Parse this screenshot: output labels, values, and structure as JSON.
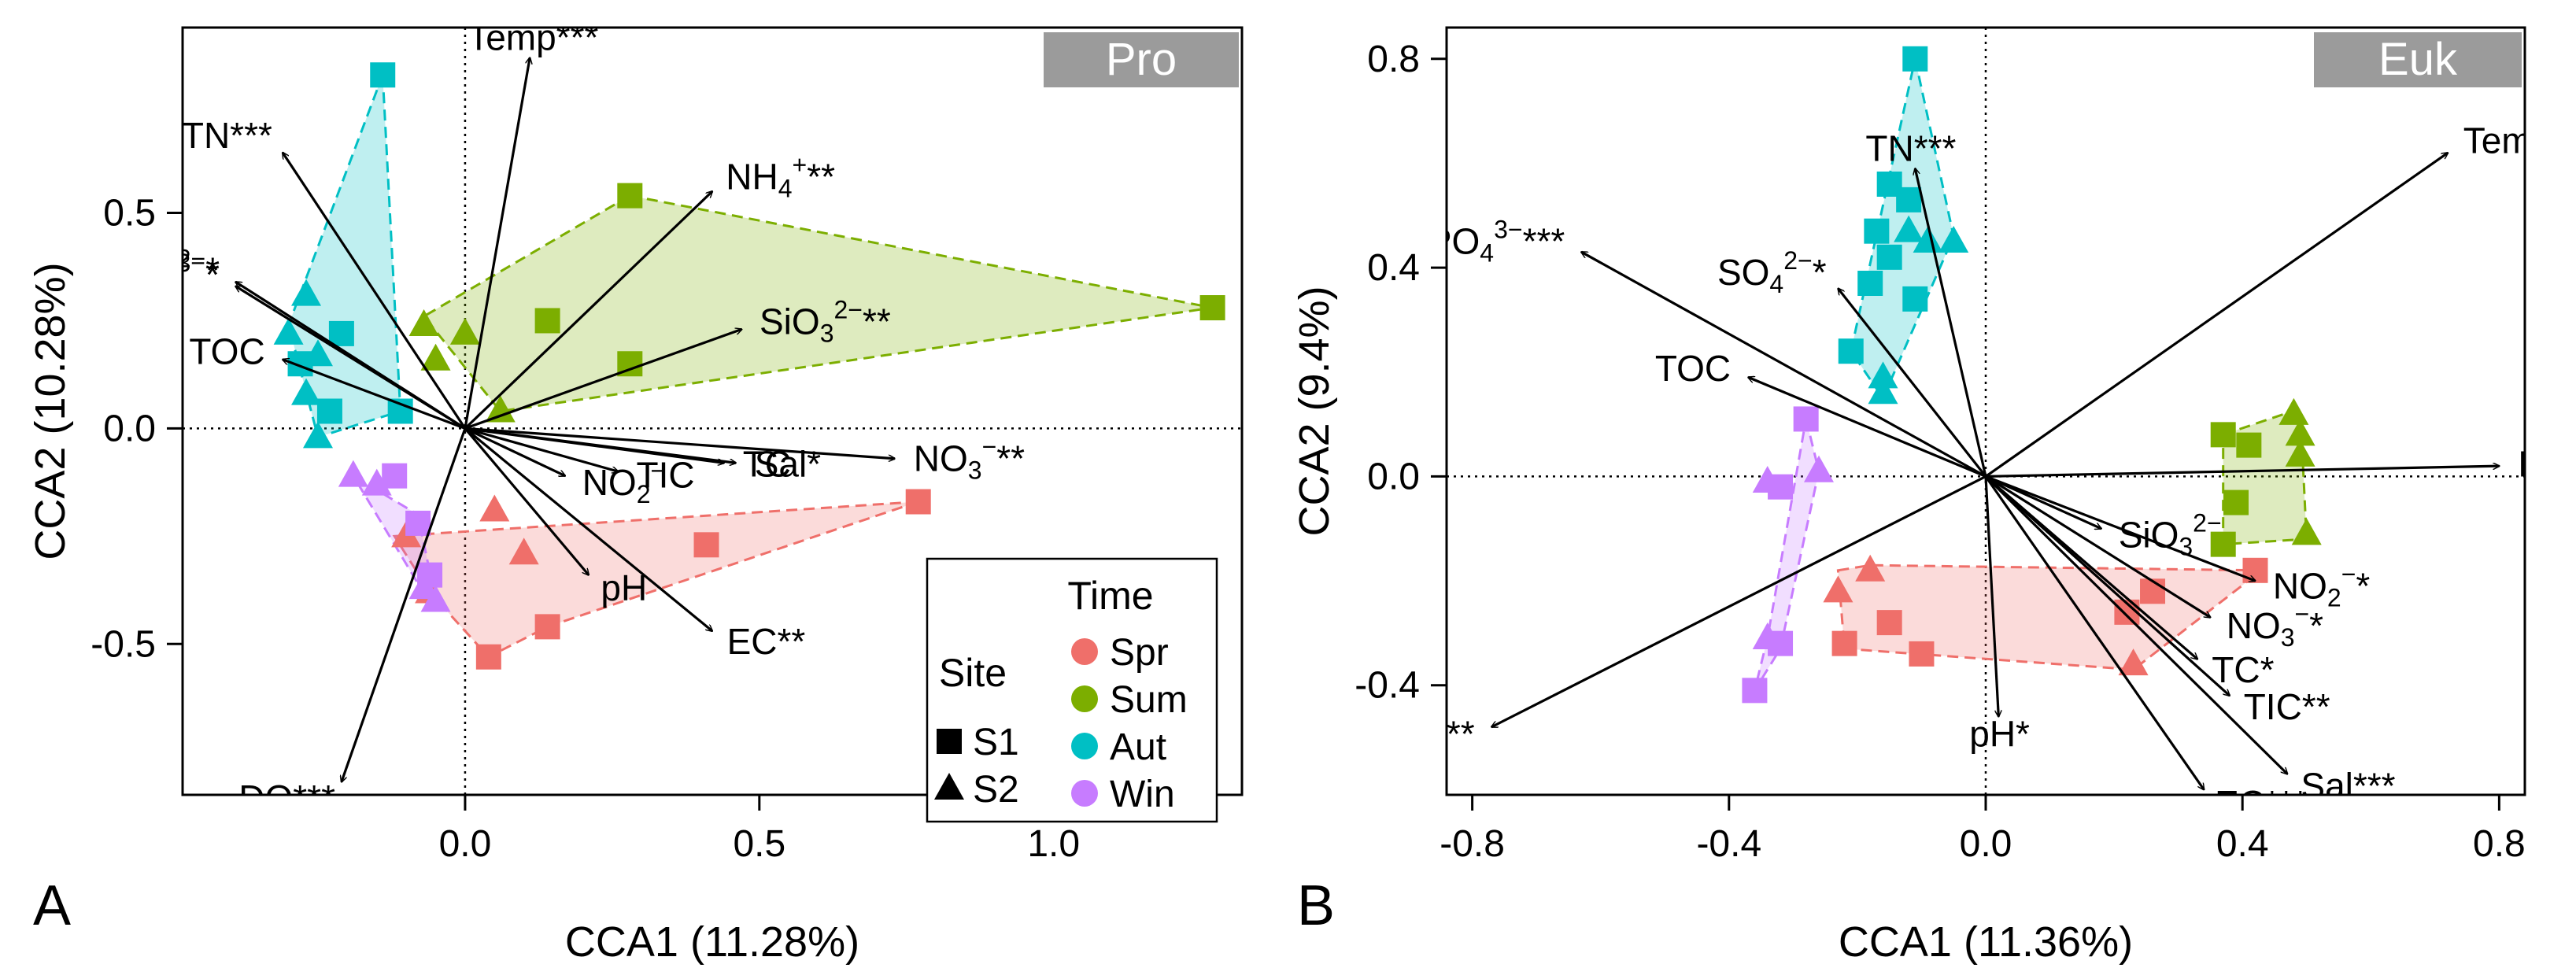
{
  "figure": {
    "legend": {
      "time_title": "Time",
      "site_title": "Site",
      "time_entries": [
        {
          "label": "Spr",
          "color": "#EF6F6A"
        },
        {
          "label": "Sum",
          "color": "#7CAE00"
        },
        {
          "label": "Aut",
          "color": "#00BFC4"
        },
        {
          "label": "Win",
          "color": "#C77CFF"
        }
      ],
      "site_entries": [
        {
          "label": "S1",
          "shape": "square"
        },
        {
          "label": "S2",
          "shape": "triangle"
        }
      ]
    }
  },
  "chart_data": [
    {
      "type": "scatter",
      "panel_label": "A",
      "title": "Pro",
      "xlabel": "CCA1 (11.28%)",
      "ylabel": "CCA2 (10.28%)",
      "xlim": [
        -0.48,
        1.32
      ],
      "ylim": [
        -0.85,
        0.93
      ],
      "xticks": [
        0.0,
        0.5,
        1.0
      ],
      "xtick_labels": [
        "0.0",
        "0.5",
        "1.0"
      ],
      "yticks": [
        -0.5,
        0.0,
        0.5
      ],
      "ytick_labels": [
        "-0.5",
        "0.0",
        "0.5"
      ],
      "groups": {
        "Spr": {
          "hull": [
            [
              0.77,
              -0.17
            ],
            [
              -0.12,
              -0.25
            ],
            [
              -0.06,
              -0.38
            ],
            [
              0.04,
              -0.53
            ],
            [
              0.14,
              -0.46
            ]
          ],
          "points": [
            [
              0.77,
              -0.17,
              "S1"
            ],
            [
              0.41,
              -0.27,
              "S1"
            ],
            [
              0.14,
              -0.46,
              "S1"
            ],
            [
              0.04,
              -0.53,
              "S1"
            ],
            [
              0.05,
              -0.19,
              "S2"
            ],
            [
              0.1,
              -0.29,
              "S2"
            ],
            [
              -0.1,
              -0.25,
              "S2"
            ],
            [
              -0.06,
              -0.38,
              "S2"
            ]
          ]
        },
        "Sum": {
          "hull": [
            [
              0.28,
              0.54
            ],
            [
              1.27,
              0.28
            ],
            [
              0.06,
              0.04
            ],
            [
              -0.07,
              0.26
            ]
          ],
          "points": [
            [
              1.27,
              0.28,
              "S1"
            ],
            [
              0.28,
              0.54,
              "S1"
            ],
            [
              0.14,
              0.25,
              "S1"
            ],
            [
              0.28,
              0.15,
              "S1"
            ],
            [
              -0.07,
              0.24,
              "S2"
            ],
            [
              0.0,
              0.22,
              "S2"
            ],
            [
              -0.05,
              0.16,
              "S2"
            ],
            [
              0.06,
              0.04,
              "S2"
            ]
          ]
        },
        "Aut": {
          "hull": [
            [
              -0.14,
              0.82
            ],
            [
              -0.11,
              0.04
            ],
            [
              -0.25,
              -0.02
            ],
            [
              -0.3,
              0.24
            ]
          ],
          "points": [
            [
              -0.14,
              0.82,
              "S1"
            ],
            [
              -0.21,
              0.22,
              "S1"
            ],
            [
              -0.28,
              0.15,
              "S1"
            ],
            [
              -0.23,
              0.04,
              "S1"
            ],
            [
              -0.11,
              0.04,
              "S1"
            ],
            [
              -0.3,
              0.22,
              "S2"
            ],
            [
              -0.27,
              0.31,
              "S2"
            ],
            [
              -0.25,
              0.17,
              "S2"
            ],
            [
              -0.27,
              0.08,
              "S2"
            ],
            [
              -0.25,
              -0.02,
              "S2"
            ]
          ]
        },
        "Win": {
          "hull": [
            [
              -0.19,
              -0.11
            ],
            [
              -0.08,
              -0.2
            ],
            [
              -0.05,
              -0.4
            ],
            [
              -0.08,
              -0.36
            ]
          ],
          "points": [
            [
              -0.12,
              -0.11,
              "S1"
            ],
            [
              -0.08,
              -0.22,
              "S1"
            ],
            [
              -0.06,
              -0.34,
              "S1"
            ],
            [
              -0.19,
              -0.11,
              "S2"
            ],
            [
              -0.15,
              -0.13,
              "S2"
            ],
            [
              -0.07,
              -0.37,
              "S2"
            ],
            [
              -0.05,
              -0.4,
              "S2"
            ]
          ]
        }
      },
      "arrows": [
        {
          "label": "Temp",
          "sig": "***",
          "x": 0.11,
          "y": 0.86
        },
        {
          "label": "TN",
          "sig": "***",
          "x": -0.31,
          "y": 0.64
        },
        {
          "label": "NH",
          "sub": "4",
          "sup": "+",
          "sig": "**",
          "x": 0.42,
          "y": 0.55
        },
        {
          "label": "PO",
          "sub": "4",
          "sup": "3−",
          "sig": "*",
          "x": -0.39,
          "y": 0.33
        },
        {
          "label": "SO",
          "sub": "4",
          "sup": "2−",
          "sig": "*",
          "x": -0.39,
          "y": 0.34
        },
        {
          "label": "SiO",
          "sub": "3",
          "sup": "2−",
          "sig": "**",
          "x": 0.47,
          "y": 0.23
        },
        {
          "label": "TOC",
          "sig": "",
          "x": -0.31,
          "y": 0.16
        },
        {
          "label": "TC",
          "sig": "",
          "x": 0.44,
          "y": -0.08
        },
        {
          "label": "NO",
          "sub": "3",
          "sup": "−",
          "sig": "**",
          "x": 0.73,
          "y": -0.07
        },
        {
          "label": "Sal",
          "sig": "*",
          "x": 0.46,
          "y": -0.08
        },
        {
          "label": "NO",
          "sub": "2",
          "sup": "−",
          "sig": "",
          "x": 0.17,
          "y": -0.11
        },
        {
          "label": "TIC",
          "sig": "",
          "x": 0.26,
          "y": -0.1
        },
        {
          "label": "pH",
          "sig": "",
          "x": 0.21,
          "y": -0.34
        },
        {
          "label": "EC",
          "sig": "**",
          "x": 0.42,
          "y": -0.47
        },
        {
          "label": "DO",
          "sig": "***",
          "x": -0.21,
          "y": -0.82
        }
      ]
    },
    {
      "type": "scatter",
      "panel_label": "B",
      "title": "Euk",
      "xlabel": "CCA1 (11.36%)",
      "ylabel": "CCA2 (9.4%)",
      "xlim": [
        -0.84,
        0.84
      ],
      "ylim": [
        -0.61,
        0.86
      ],
      "xticks": [
        -0.8,
        -0.4,
        0.0,
        0.4,
        0.8
      ],
      "xtick_labels": [
        "-0.8",
        "-0.4",
        "0.0",
        "0.4",
        "0.8"
      ],
      "yticks": [
        -0.4,
        0.0,
        0.4,
        0.8
      ],
      "ytick_labels": [
        "-0.4",
        "0.0",
        "0.4",
        "0.8"
      ],
      "groups": {
        "Spr": {
          "hull": [
            [
              -0.23,
              -0.18
            ],
            [
              -0.18,
              -0.17
            ],
            [
              0.43,
              -0.18
            ],
            [
              0.23,
              -0.37
            ],
            [
              -0.22,
              -0.33
            ]
          ],
          "points": [
            [
              -0.22,
              -0.32,
              "S1"
            ],
            [
              -0.15,
              -0.28,
              "S1"
            ],
            [
              -0.1,
              -0.34,
              "S1"
            ],
            [
              0.22,
              -0.26,
              "S1"
            ],
            [
              0.26,
              -0.22,
              "S1"
            ],
            [
              0.42,
              -0.18,
              "S1"
            ],
            [
              -0.23,
              -0.22,
              "S2"
            ],
            [
              -0.18,
              -0.18,
              "S2"
            ],
            [
              0.23,
              -0.36,
              "S2"
            ]
          ]
        },
        "Sum": {
          "hull": [
            [
              0.37,
              0.08
            ],
            [
              0.49,
              0.13
            ],
            [
              0.5,
              -0.12
            ],
            [
              0.37,
              -0.13
            ]
          ],
          "points": [
            [
              0.37,
              0.08,
              "S1"
            ],
            [
              0.41,
              0.06,
              "S1"
            ],
            [
              0.39,
              -0.05,
              "S1"
            ],
            [
              0.37,
              -0.13,
              "S1"
            ],
            [
              0.48,
              0.12,
              "S2"
            ],
            [
              0.49,
              0.08,
              "S2"
            ],
            [
              0.49,
              0.04,
              "S2"
            ],
            [
              0.5,
              -0.11,
              "S2"
            ]
          ]
        },
        "Aut": {
          "hull": [
            [
              -0.11,
              0.8
            ],
            [
              -0.05,
              0.46
            ],
            [
              -0.16,
              0.15
            ],
            [
              -0.21,
              0.24
            ]
          ],
          "points": [
            [
              -0.11,
              0.8,
              "S1"
            ],
            [
              -0.15,
              0.56,
              "S1"
            ],
            [
              -0.12,
              0.53,
              "S1"
            ],
            [
              -0.17,
              0.47,
              "S1"
            ],
            [
              -0.15,
              0.42,
              "S1"
            ],
            [
              -0.18,
              0.37,
              "S1"
            ],
            [
              -0.11,
              0.34,
              "S1"
            ],
            [
              -0.21,
              0.24,
              "S1"
            ],
            [
              -0.16,
              0.19,
              "S2"
            ],
            [
              -0.09,
              0.45,
              "S2"
            ],
            [
              -0.05,
              0.45,
              "S2"
            ],
            [
              -0.16,
              0.16,
              "S2"
            ],
            [
              -0.12,
              0.47,
              "S2"
            ]
          ]
        },
        "Win": {
          "hull": [
            [
              -0.28,
              0.11
            ],
            [
              -0.26,
              0.01
            ],
            [
              -0.32,
              -0.33
            ],
            [
              -0.36,
              -0.41
            ],
            [
              -0.34,
              -0.31
            ]
          ],
          "points": [
            [
              -0.28,
              0.11,
              "S1"
            ],
            [
              -0.32,
              -0.02,
              "S1"
            ],
            [
              -0.32,
              -0.32,
              "S1"
            ],
            [
              -0.36,
              -0.41,
              "S1"
            ],
            [
              -0.26,
              0.01,
              "S2"
            ],
            [
              -0.34,
              -0.01,
              "S2"
            ],
            [
              -0.34,
              -0.31,
              "S2"
            ]
          ]
        }
      },
      "arrows": [
        {
          "label": "TN",
          "sig": "***",
          "x": -0.11,
          "y": 0.59
        },
        {
          "label": "PO",
          "sub": "4",
          "sup": "3−",
          "sig": "***",
          "x": -0.63,
          "y": 0.43
        },
        {
          "label": "SO",
          "sub": "4",
          "sup": "2−",
          "sig": "*",
          "x": -0.23,
          "y": 0.36
        },
        {
          "label": "TOC",
          "sig": "",
          "x": -0.37,
          "y": 0.19
        },
        {
          "label": "Temp",
          "sig": "***",
          "x": 0.72,
          "y": 0.62
        },
        {
          "label": "NH",
          "sub": "4",
          "sup": "+",
          "sig": "***",
          "x": 0.8,
          "y": 0.02
        },
        {
          "label": "SiO",
          "sub": "3",
          "sup": "2−",
          "sig": "",
          "x": 0.18,
          "y": -0.1
        },
        {
          "label": "NO",
          "sub": "2",
          "sup": "−",
          "sig": "*",
          "x": 0.42,
          "y": -0.2
        },
        {
          "label": "NO",
          "sub": "3",
          "sup": "−",
          "sig": "*",
          "x": 0.35,
          "y": -0.27
        },
        {
          "label": "TC",
          "sig": "*",
          "x": 0.33,
          "y": -0.35
        },
        {
          "label": "TIC",
          "sig": "**",
          "x": 0.38,
          "y": -0.42
        },
        {
          "label": "Sal",
          "sig": "***",
          "x": 0.47,
          "y": -0.57
        },
        {
          "label": "EC",
          "sig": "***",
          "x": 0.34,
          "y": -0.6
        },
        {
          "label": "pH",
          "sig": "*",
          "x": 0.02,
          "y": -0.46
        },
        {
          "label": "DO",
          "sig": "***",
          "x": -0.77,
          "y": -0.48
        }
      ]
    }
  ]
}
